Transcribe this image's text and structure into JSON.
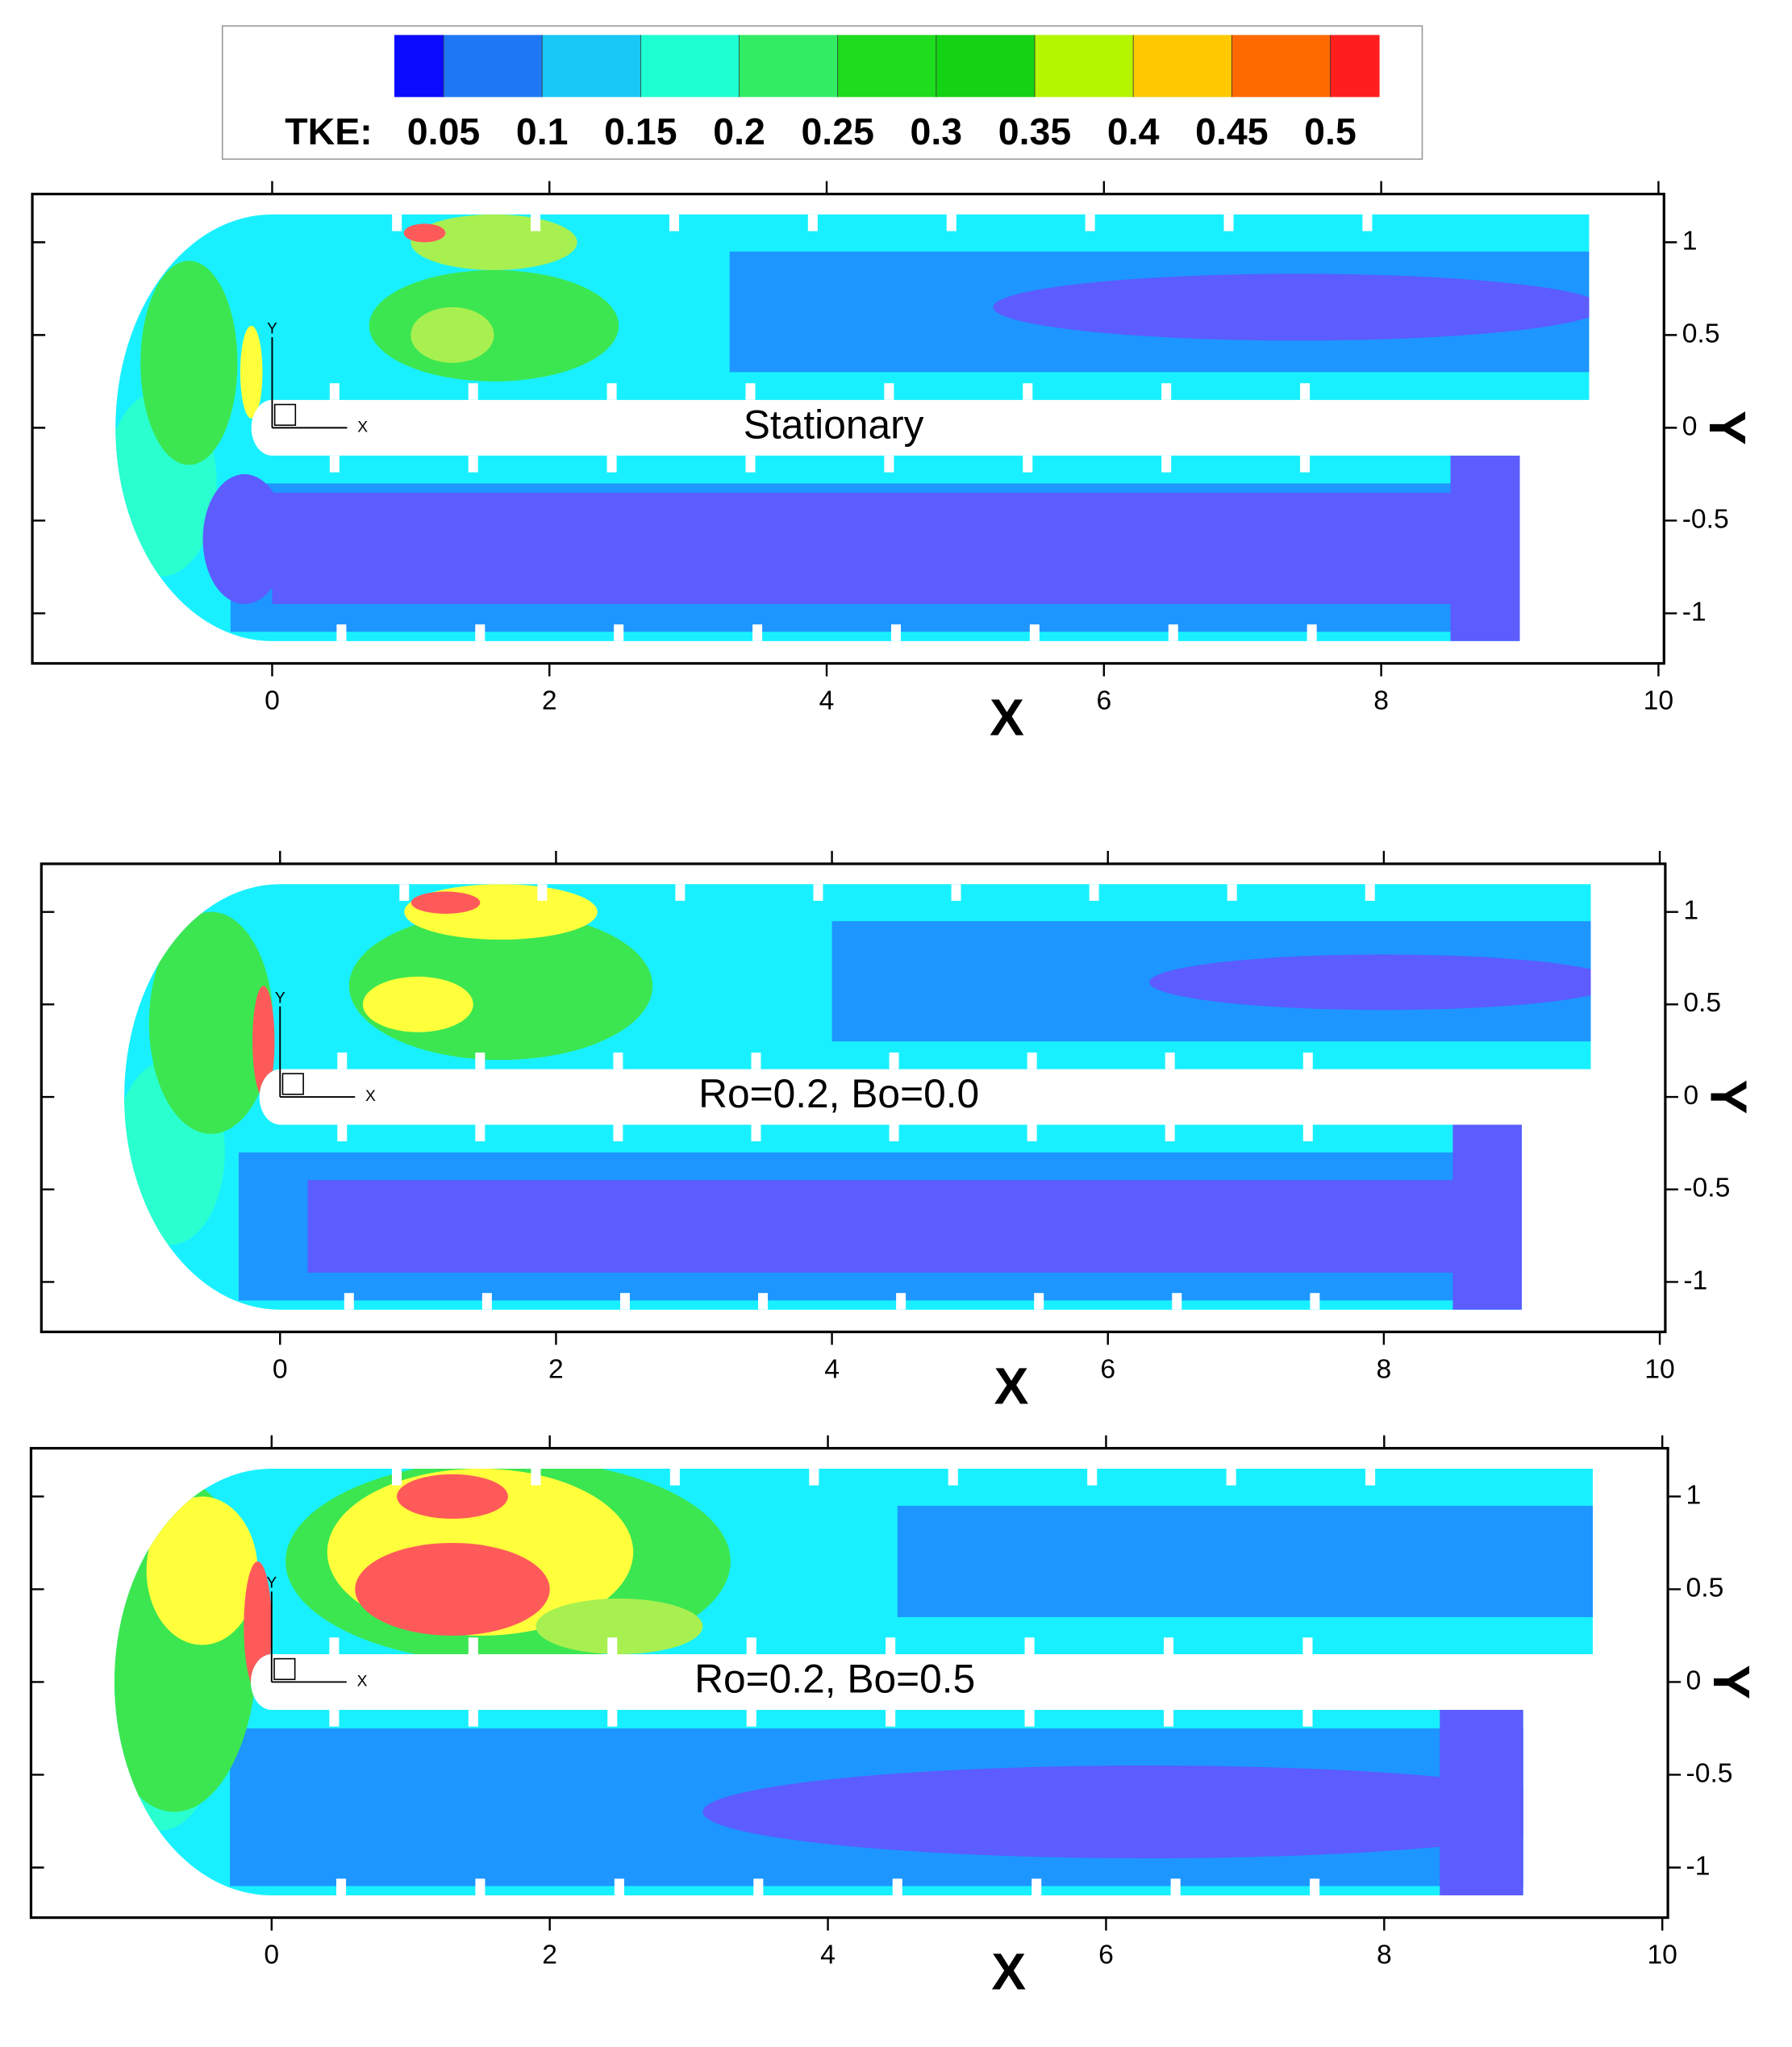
{
  "colorbar": {
    "label": "TKE:",
    "levels": [
      0.05,
      0.1,
      0.15,
      0.2,
      0.25,
      0.3,
      0.35,
      0.4,
      0.45,
      0.5
    ],
    "colors": [
      "#0a0aff",
      "#1e78f5",
      "#19c8f5",
      "#1effd2",
      "#32ec64",
      "#1edc1e",
      "#14d214",
      "#b4f500",
      "#ffc800",
      "#ff6a00",
      "#ff1e1e"
    ]
  },
  "chart_data": [
    {
      "type": "contour",
      "annotation": "Stationary",
      "xlabel": "X",
      "ylabel": "Y",
      "triad": [
        "X",
        "Y"
      ],
      "xlim": [
        -1.73,
        10.04
      ],
      "ylim": [
        -1.27,
        1.26
      ],
      "xticks": [
        0,
        2,
        4,
        6,
        8,
        10
      ],
      "yticks": [
        -1,
        -0.5,
        0,
        0.5,
        1
      ]
    },
    {
      "type": "contour",
      "annotation": "Ro=0.2, Bo=0.0",
      "xlabel": "X",
      "ylabel": "Y",
      "triad": [
        "X",
        "Y"
      ],
      "xlim": [
        -1.73,
        10.04
      ],
      "ylim": [
        -1.27,
        1.26
      ],
      "xticks": [
        0,
        2,
        4,
        6,
        8,
        10
      ],
      "yticks": [
        -1,
        -0.5,
        0,
        0.5,
        1
      ]
    },
    {
      "type": "contour",
      "annotation": "Ro=0.2, Bo=0.5",
      "xlabel": "X",
      "ylabel": "Y",
      "triad": [
        "X",
        "Y"
      ],
      "xlim": [
        -1.73,
        10.04
      ],
      "ylim": [
        -1.27,
        1.26
      ],
      "xticks": [
        0,
        2,
        4,
        6,
        8,
        10
      ],
      "yticks": [
        -1,
        -0.5,
        0,
        0.5,
        1
      ]
    }
  ]
}
